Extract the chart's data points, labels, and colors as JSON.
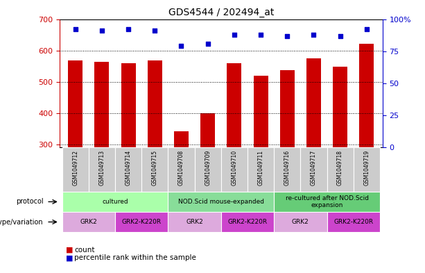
{
  "title": "GDS4544 / 202494_at",
  "samples": [
    "GSM1049712",
    "GSM1049713",
    "GSM1049714",
    "GSM1049715",
    "GSM1049708",
    "GSM1049709",
    "GSM1049710",
    "GSM1049711",
    "GSM1049716",
    "GSM1049717",
    "GSM1049718",
    "GSM1049719"
  ],
  "counts": [
    568,
    563,
    560,
    568,
    342,
    400,
    560,
    520,
    537,
    575,
    548,
    622
  ],
  "percentiles": [
    92,
    91,
    92,
    91,
    79,
    81,
    88,
    88,
    87,
    88,
    87,
    92
  ],
  "bar_color": "#cc0000",
  "dot_color": "#0000cc",
  "ylim_left": [
    290,
    700
  ],
  "ylim_right": [
    0,
    100
  ],
  "yticks_left": [
    300,
    400,
    500,
    600,
    700
  ],
  "yticks_right": [
    0,
    25,
    50,
    75,
    100
  ],
  "protocol_groups": [
    {
      "label": "cultured",
      "start": 0,
      "end": 3,
      "color": "#aaffaa"
    },
    {
      "label": "NOD.Scid mouse-expanded",
      "start": 4,
      "end": 7,
      "color": "#88dd99"
    },
    {
      "label": "re-cultured after NOD.Scid\nexpansion",
      "start": 8,
      "end": 11,
      "color": "#66cc77"
    }
  ],
  "genotype_groups": [
    {
      "label": "GRK2",
      "start": 0,
      "end": 1,
      "color": "#ddaadd"
    },
    {
      "label": "GRK2-K220R",
      "start": 2,
      "end": 3,
      "color": "#cc44cc"
    },
    {
      "label": "GRK2",
      "start": 4,
      "end": 5,
      "color": "#ddaadd"
    },
    {
      "label": "GRK2-K220R",
      "start": 6,
      "end": 7,
      "color": "#cc44cc"
    },
    {
      "label": "GRK2",
      "start": 8,
      "end": 9,
      "color": "#ddaadd"
    },
    {
      "label": "GRK2-K220R",
      "start": 10,
      "end": 11,
      "color": "#cc44cc"
    }
  ],
  "legend_count_color": "#cc0000",
  "legend_pct_color": "#0000cc",
  "sample_bg_color": "#cccccc"
}
